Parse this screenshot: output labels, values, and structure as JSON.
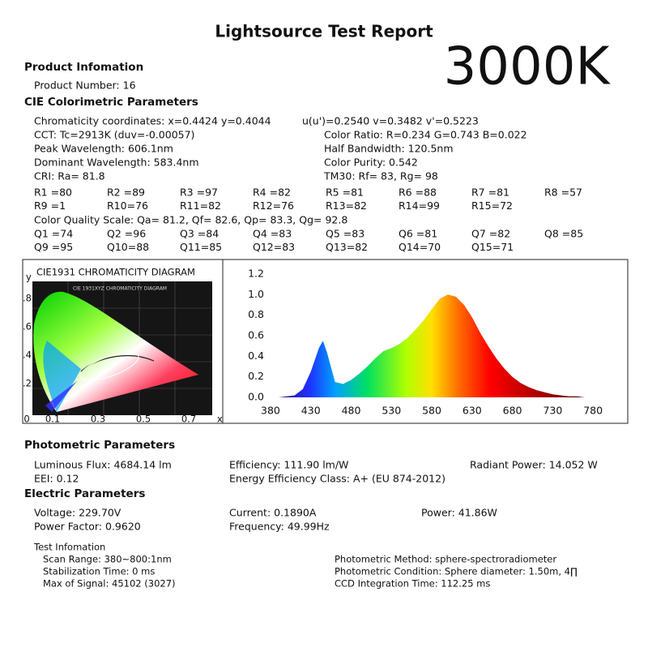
{
  "header": {
    "title": "Lightsource Test Report",
    "cct_badge": "3000K"
  },
  "product": {
    "heading": "Product Infomation",
    "number": "Product Number: 16"
  },
  "cie": {
    "heading": "CIE Colorimetric Parameters",
    "chromaticity": "Chromaticity coordinates: x=0.4424 y=0.4044",
    "uv": "u(u')=0.2540 v=0.3482 v'=0.5223",
    "cct": "CCT: Tc=2913K (duv=-0.00057)",
    "color_ratio": "Color Ratio: R=0.234  G=0.743  B=0.022",
    "peak": "Peak Wavelength: 606.1nm",
    "half_bandwidth": "Half Bandwidth: 120.5nm",
    "dominant": "Dominant Wavelength: 583.4nm",
    "purity": "Color Purity: 0.542",
    "cri": "CRI: Ra= 81.8",
    "tm30": "TM30: Rf=  83, Rg=  98",
    "r_rows": [
      [
        "R1 =80",
        "R2 =89",
        "R3 =97",
        "R4 =82",
        "R5 =81",
        "R6 =88",
        "R7 =81",
        "R8 =57"
      ],
      [
        "R9 =1",
        "R10=76",
        "R11=82",
        "R12=76",
        "R13=82",
        "R14=99",
        "R15=72"
      ]
    ],
    "cqs": "Color Quality Scale: Qa= 81.2, Qf= 82.6, Qp= 83.3, Qg= 92.8",
    "q_rows": [
      [
        "Q1 =74",
        "Q2 =96",
        "Q3 =84",
        "Q4 =83",
        "Q5 =83",
        "Q6 =81",
        "Q7 =82",
        "Q8 =85"
      ],
      [
        "Q9 =95",
        "Q10=88",
        "Q11=85",
        "Q12=83",
        "Q13=82",
        "Q14=70",
        "Q15=71"
      ]
    ]
  },
  "diagram": {
    "title": "CIE1931 CHROMATICITY DIAGRAM",
    "inner_title": "CIE 1931XYZ CHROMATICITY DIAGRAM",
    "y_label": "y",
    "x_label": "x",
    "y_ticks": [
      ".8",
      ".6",
      ".4",
      ".2"
    ],
    "x_ticks": [
      "0",
      "0.1",
      "0.3",
      "0.5",
      "0.7"
    ]
  },
  "chart_data": {
    "type": "area",
    "x": [
      380,
      390,
      400,
      410,
      420,
      430,
      440,
      445,
      450,
      460,
      470,
      480,
      490,
      500,
      510,
      520,
      530,
      540,
      550,
      560,
      570,
      580,
      590,
      600,
      610,
      620,
      630,
      640,
      650,
      660,
      670,
      680,
      690,
      700,
      710,
      720,
      730,
      740,
      750,
      760,
      770,
      780
    ],
    "values": [
      0,
      0,
      0.01,
      0.02,
      0.08,
      0.25,
      0.48,
      0.55,
      0.44,
      0.15,
      0.13,
      0.17,
      0.23,
      0.3,
      0.38,
      0.45,
      0.48,
      0.52,
      0.58,
      0.66,
      0.75,
      0.86,
      0.96,
      1.0,
      0.98,
      0.9,
      0.78,
      0.63,
      0.5,
      0.38,
      0.28,
      0.2,
      0.14,
      0.1,
      0.07,
      0.05,
      0.03,
      0.02,
      0.01,
      0.01,
      0,
      0
    ],
    "xlim": [
      372,
      812
    ],
    "ylim": [
      0,
      1.2
    ],
    "xticks": [
      380,
      430,
      480,
      530,
      580,
      630,
      680,
      730,
      780
    ],
    "yticks": [
      {
        "value": 0,
        "label": "0.0"
      },
      0.2,
      0.4,
      0.6,
      0.8,
      {
        "value": 1,
        "label": "1.0"
      },
      1.2
    ]
  },
  "photometric": {
    "heading": "Photometric Parameters",
    "flux": "Luminous Flux: 4684.14 lm",
    "efficiency": "Efficiency: 111.90 lm/W",
    "radiant": "Radiant Power: 14.052 W",
    "eei": "EEI:  0.12",
    "class": "Energy Efficiency Class: A+ (EU 874-2012)"
  },
  "electric": {
    "heading": "Electric Parameters",
    "voltage": "Voltage: 229.70V",
    "current": "Current: 0.1890A",
    "power": "Power: 41.86W",
    "pf": "Power Factor: 0.9620",
    "frequency": "Frequency: 49.99Hz"
  },
  "test": {
    "heading": "Test Infomation",
    "scan": "Scan Range: 380~800:1nm",
    "stabilization": "Stabilization Time: 0 ms",
    "signal": "Max of Signal: 45102 (3027)",
    "method": "Photometric Method: sphere-spectroradiometer",
    "condition": "Photometric Condition: Sphere diameter: 1.50m, 4∏",
    "ccd": "CCD Integration Time: 112.25 ms"
  }
}
